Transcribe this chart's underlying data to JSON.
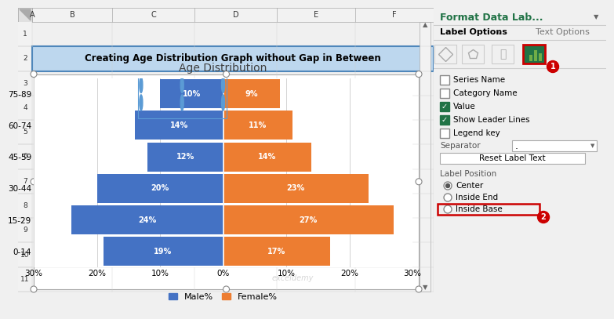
{
  "title": "Age Distribution",
  "header": "Creating Age Distribution Graph without Gap in Between",
  "categories": [
    "75-89",
    "60-74",
    "45-59",
    "30-44",
    "15-29",
    "0-14"
  ],
  "male_values": [
    10,
    14,
    12,
    20,
    24,
    19
  ],
  "female_values": [
    9,
    11,
    14,
    23,
    27,
    17
  ],
  "male_color": "#4472C4",
  "female_color": "#ED7D31",
  "xticklabels": [
    "30%",
    "20%",
    "10%",
    "0%",
    "10%",
    "20%",
    "30%"
  ],
  "legend_male": "Male%",
  "legend_female": "Female%",
  "header_bg": "#BDD7EE",
  "outer_bg": "#F0F0F0",
  "panel_bg": "#E8E8E8",
  "chart_border": "#AAAAAA",
  "col_header_bg": "#F2F2F2",
  "row_header_bg": "#F2F2F2"
}
